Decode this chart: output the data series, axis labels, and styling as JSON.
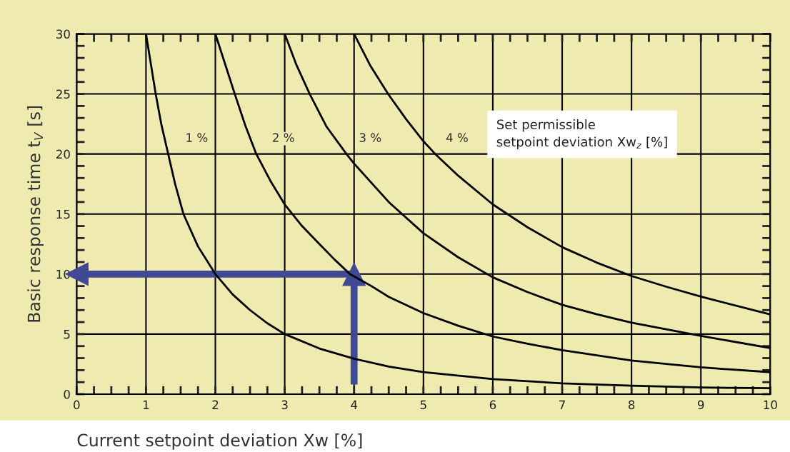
{
  "chart_data": {
    "type": "line",
    "xlabel": "Current setpoint deviation Xw [%]",
    "ylabel": "Basic response time t$_{V}$ [s]",
    "legend_title": "Set permissible\nsetpoint deviation Xw$_{z}$ [%]",
    "xlim": [
      0,
      10
    ],
    "ylim": [
      0,
      30
    ],
    "xticks": [
      0,
      1,
      2,
      3,
      4,
      5,
      6,
      7,
      8,
      9,
      10
    ],
    "yticks": [
      0,
      5,
      10,
      15,
      20,
      25,
      30
    ],
    "grid": true,
    "marker": "none",
    "line_style": "solid",
    "series": [
      {
        "name": "1 %",
        "color": "#000000",
        "x": [
          1,
          1.07,
          1.14,
          1.22,
          1.32,
          1.42,
          1.54,
          1.75,
          2,
          2.25,
          2.5,
          2.75,
          3,
          3.5,
          4,
          4.5,
          5,
          6,
          7,
          8,
          9,
          10
        ],
        "values": [
          30,
          27.5,
          25,
          22.5,
          20,
          17.5,
          15,
          12.3,
          10,
          8.3,
          7,
          5.9,
          5,
          3.8,
          2.95,
          2.3,
          1.83,
          1.26,
          0.9,
          0.7,
          0.55,
          0.5
        ]
      },
      {
        "name": "2 %",
        "color": "#000000",
        "x": [
          2,
          2.14,
          2.28,
          2.43,
          2.59,
          2.8,
          3,
          3.25,
          3.5,
          3.72,
          3.94,
          4.25,
          4.5,
          5,
          5.5,
          6,
          6.5,
          7,
          8,
          9,
          10
        ],
        "values": [
          30,
          27.5,
          25,
          22.4,
          20,
          17.7,
          15.8,
          14,
          12.5,
          11.2,
          10,
          9,
          8.1,
          6.75,
          5.7,
          4.8,
          4.2,
          3.66,
          2.8,
          2.23,
          1.83
        ]
      },
      {
        "name": "3 %",
        "color": "#000000",
        "x": [
          3,
          3.17,
          3.36,
          3.6,
          3.89,
          4,
          4.5,
          5,
          5.5,
          6,
          6.5,
          7,
          7.5,
          8,
          9,
          10
        ],
        "values": [
          30,
          27.4,
          25,
          22.3,
          20,
          19.2,
          16,
          13.4,
          11.4,
          9.73,
          8.5,
          7.44,
          6.65,
          5.95,
          4.85,
          3.84
        ]
      },
      {
        "name": "4 %",
        "color": "#000000",
        "x": [
          4,
          4.23,
          4.49,
          4.75,
          5,
          5.17,
          5.5,
          6,
          6.5,
          7,
          7.5,
          8,
          8.5,
          9,
          10
        ],
        "values": [
          30,
          27.4,
          25,
          22.9,
          21.06,
          20,
          18.2,
          15.8,
          13.9,
          12.24,
          10.95,
          9.84,
          8.95,
          8.12,
          6.64
        ]
      },
      {
        "type": "line",
        "marker": "triangle",
        "color": "#404a94",
        "x": [
          4,
          4
        ],
        "values": [
          0.8,
          10
        ]
      },
      {
        "type": "line",
        "marker": "triangle",
        "color": "#404a94",
        "x": [
          4,
          0
        ],
        "values": [
          10,
          10
        ]
      }
    ]
  }
}
